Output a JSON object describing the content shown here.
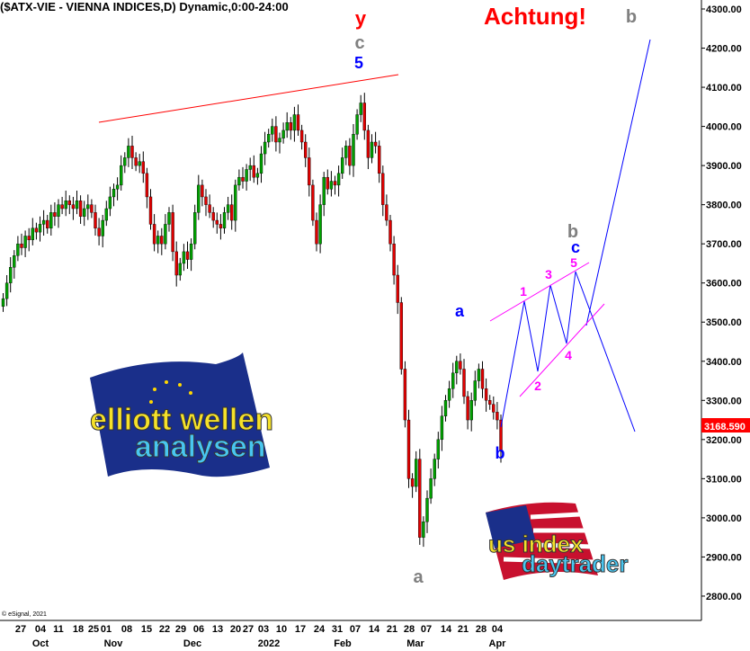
{
  "header": {
    "title": "($ATX-VIE - VIENNA INDICES,D) Dynamic,0:00-24:00",
    "copyright": "© eSignal, 2021"
  },
  "chart_data": {
    "type": "candlestick",
    "title": "($ATX-VIE - VIENNA INDICES,D) Dynamic,0:00-24:00",
    "ylim": [
      2750,
      4320
    ],
    "y_ticks": [
      "4300.00",
      "4200.00",
      "4100.00",
      "4000.00",
      "3900.00",
      "3800.00",
      "3700.00",
      "3600.00",
      "3500.00",
      "3400.00",
      "3300.00",
      "3200.00",
      "3100.00",
      "3000.00",
      "2900.00",
      "2800.00"
    ],
    "x_ticks": [
      "27",
      "04",
      "11",
      "18",
      "25",
      "01",
      "08",
      "15",
      "22",
      "29",
      "06",
      "13",
      "20",
      "27",
      "03",
      "10",
      "17",
      "24",
      "31",
      "07",
      "14",
      "21",
      "28",
      "07",
      "14",
      "21",
      "28",
      "04"
    ],
    "x_months": [
      "Oct",
      "Nov",
      "Dec",
      "2022",
      "Feb",
      "Mar",
      "Apr"
    ],
    "last_price": "3168.590",
    "colors": {
      "up": "#00a000",
      "down": "#e00000",
      "last_price_bg": "#ff0000",
      "trendline": "#ff0000",
      "projection": "#0000ff",
      "channel": "#ff00ff"
    },
    "closes": [
      3560,
      3600,
      3640,
      3670,
      3700,
      3690,
      3720,
      3710,
      3740,
      3730,
      3750,
      3760,
      3740,
      3780,
      3770,
      3800,
      3790,
      3810,
      3800,
      3790,
      3810,
      3770,
      3790,
      3800,
      3780,
      3740,
      3720,
      3760,
      3790,
      3820,
      3840,
      3850,
      3900,
      3920,
      3950,
      3920,
      3900,
      3910,
      3880,
      3820,
      3750,
      3700,
      3720,
      3700,
      3750,
      3780,
      3680,
      3620,
      3650,
      3680,
      3660,
      3700,
      3780,
      3850,
      3820,
      3800,
      3780,
      3760,
      3750,
      3740,
      3780,
      3800,
      3760,
      3850,
      3870,
      3860,
      3890,
      3900,
      3870,
      3880,
      3930,
      3960,
      3980,
      4000,
      3960,
      3970,
      3990,
      4010,
      3990,
      4030,
      3990,
      3960,
      3920,
      3850,
      3760,
      3700,
      3800,
      3870,
      3840,
      3860,
      3850,
      3880,
      3920,
      3950,
      3900,
      3980,
      4030,
      4060,
      3990,
      3920,
      3960,
      3950,
      3880,
      3800,
      3760,
      3700,
      3620,
      3550,
      3380,
      3250,
      3100,
      3080,
      3150,
      2950,
      2990,
      3050,
      3100,
      3150,
      3200,
      3260,
      3300,
      3330,
      3370,
      3400,
      3380,
      3310,
      3250,
      3300,
      3350,
      3380,
      3330,
      3300,
      3290,
      3270,
      3250,
      3170
    ],
    "annotations": {
      "top_y": "y",
      "top_c": "c",
      "top_5": "5",
      "warning": "Achtung!",
      "target_b": "b",
      "wave_a": "a",
      "wave_b": "b",
      "low_a": "a",
      "sub_1": "1",
      "sub_2": "2",
      "sub_3": "3",
      "sub_4": "4",
      "sub_5": "5",
      "proj_c": "c",
      "proj_b": "b"
    }
  },
  "logos": {
    "elliott": [
      "elliott wellen",
      "analysen"
    ],
    "us": [
      "us index",
      "daytrader"
    ]
  }
}
